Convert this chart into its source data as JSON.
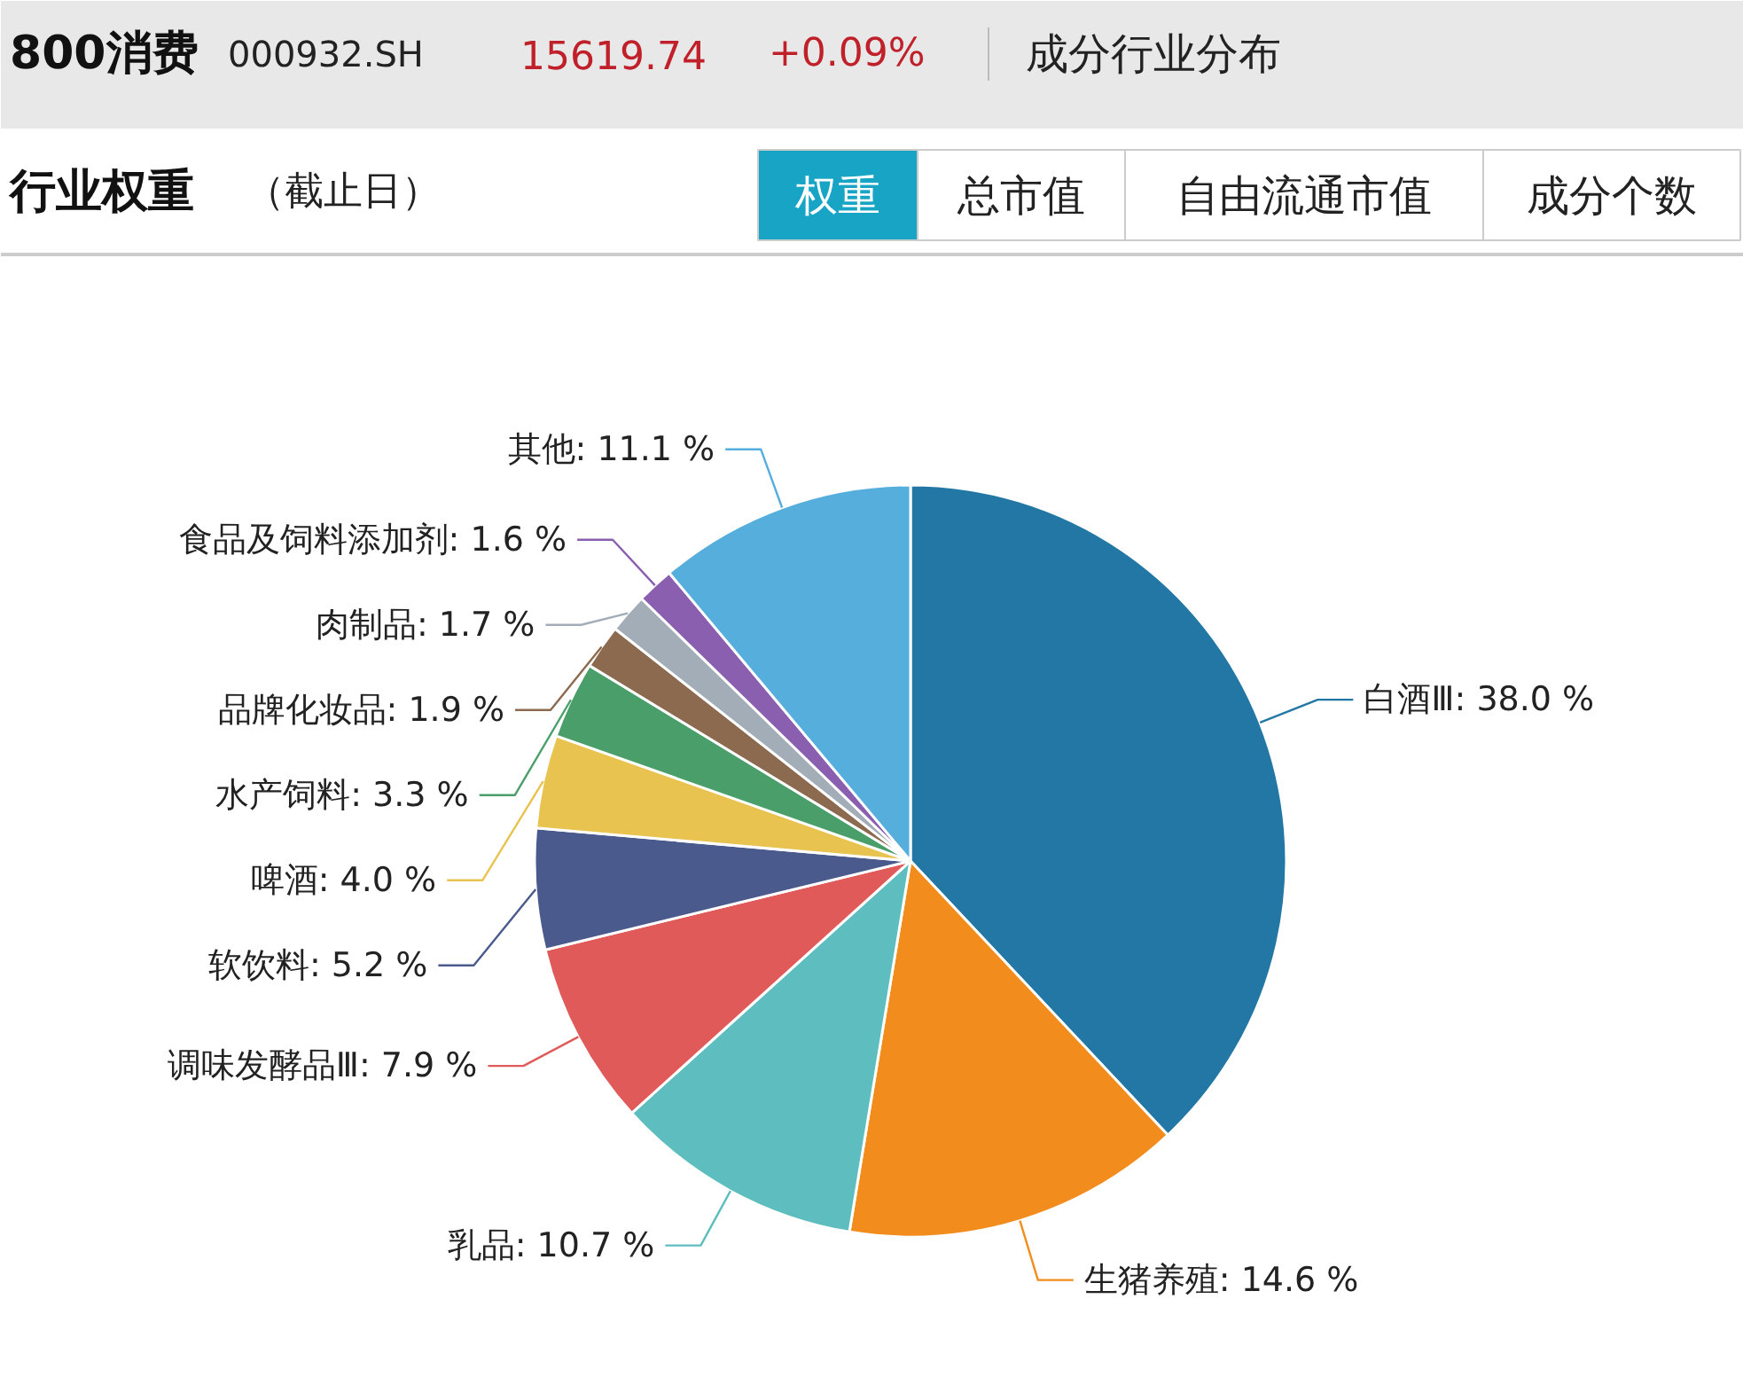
{
  "chart_data": {
    "type": "pie",
    "annotations": [
      "800消费",
      "000932.SH",
      "15619.74",
      "+0.09%",
      "成分行业分布",
      "行业权重",
      "（截止日）",
      "权重",
      "总市值",
      "自由流通市值",
      "成分个数"
    ],
    "categories": [
      "白酒Ⅲ",
      "生猪养殖",
      "乳品",
      "调味发酵品Ⅲ",
      "软饮料",
      "啤酒",
      "水产饲料",
      "品牌化妆品",
      "肉制品",
      "食品及饲料添加剂",
      "其他"
    ],
    "values": [
      38.0,
      14.6,
      10.7,
      7.9,
      5.2,
      4.0,
      3.3,
      1.9,
      1.7,
      1.6,
      11.1
    ],
    "value_labels": [
      "38.0 %",
      "14.6 %",
      "10.7 %",
      "7.9 %",
      "5.2 %",
      "4.0 %",
      "3.3 %",
      "1.9 %",
      "1.7 %",
      "1.6 %",
      "11.1 %"
    ],
    "colors": [
      "#2277a4",
      "#f28c1c",
      "#5ebdbe",
      "#e05a5a",
      "#4a5a8c",
      "#e8c350",
      "#4a9e6a",
      "#8c6a50",
      "#a3adb8",
      "#8a5fb0",
      "#55aedc"
    ]
  }
}
